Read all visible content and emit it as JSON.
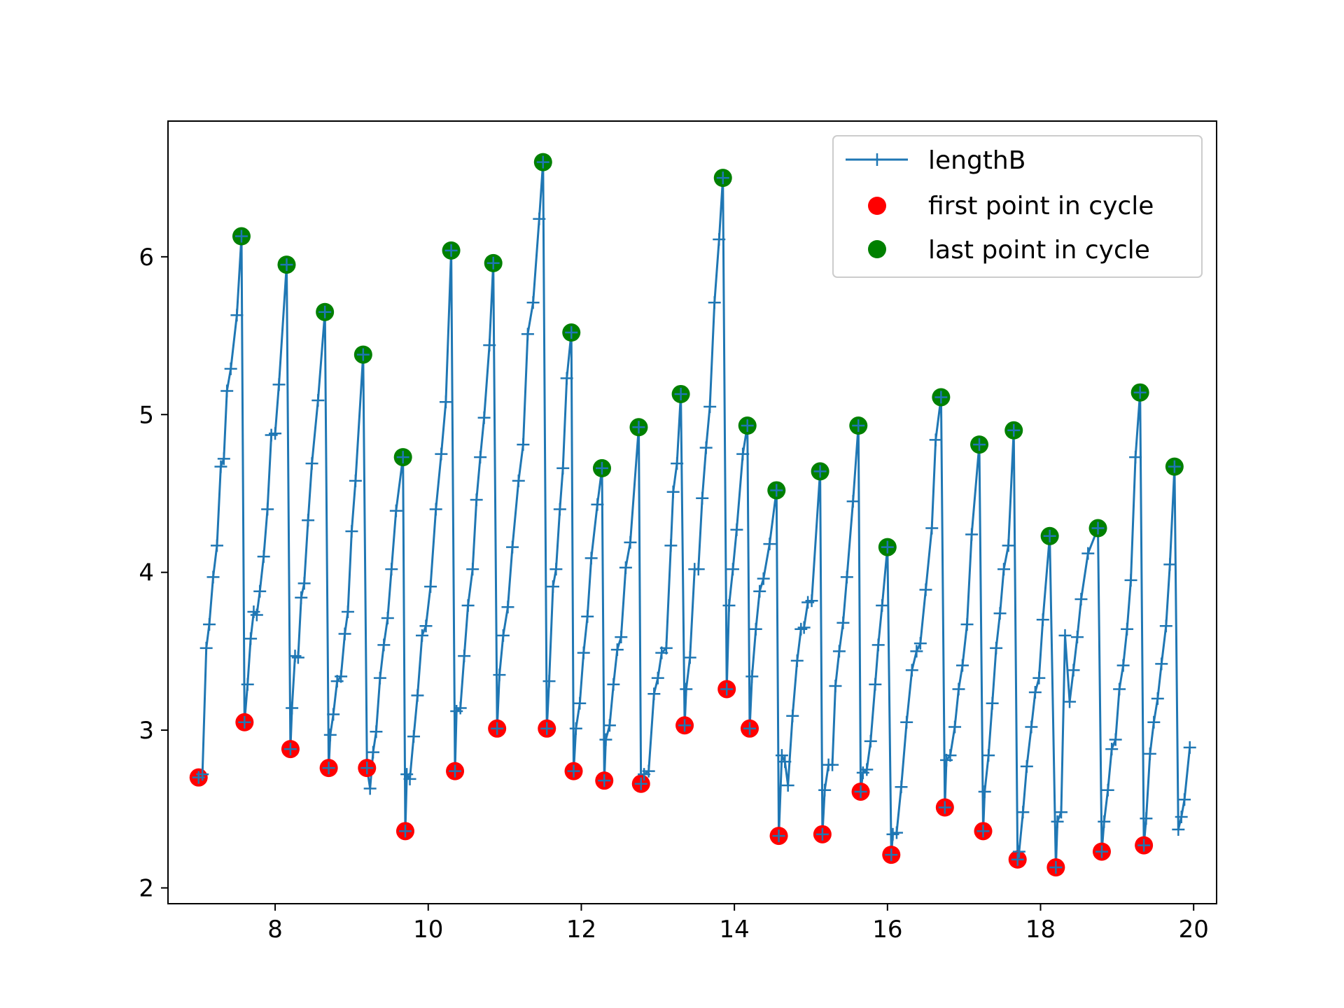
{
  "chart_data": {
    "type": "line",
    "title": "",
    "xlabel": "",
    "ylabel": "",
    "xlim": [
      6.6,
      20.3
    ],
    "ylim": [
      1.9,
      6.86
    ],
    "xticks": [
      8,
      10,
      12,
      14,
      16,
      18,
      20
    ],
    "yticks": [
      2,
      3,
      4,
      5,
      6
    ],
    "grid": false,
    "legend": {
      "position": "top-right",
      "entries": [
        "lengthB",
        "first point in cycle",
        "last point in cycle"
      ]
    },
    "colors": {
      "line": "#1f77b4",
      "first": "#ff0000",
      "last": "#008000"
    },
    "cycles": [
      {
        "first": [
          7.0,
          2.7
        ],
        "last": [
          7.56,
          6.13
        ],
        "rise": [
          [
            7.05,
            2.72
          ],
          [
            7.1,
            3.52
          ],
          [
            7.14,
            3.67
          ],
          [
            7.19,
            3.97
          ],
          [
            7.24,
            4.17
          ],
          [
            7.29,
            4.67
          ],
          [
            7.33,
            4.72
          ],
          [
            7.37,
            5.15
          ],
          [
            7.42,
            5.29
          ],
          [
            7.5,
            5.63
          ]
        ]
      },
      {
        "first": [
          7.6,
          3.05
        ],
        "last": [
          8.15,
          5.95
        ],
        "rise": [
          [
            7.64,
            3.29
          ],
          [
            7.68,
            3.58
          ],
          [
            7.72,
            3.75
          ],
          [
            7.76,
            3.73
          ],
          [
            7.8,
            3.88
          ],
          [
            7.85,
            4.1
          ],
          [
            7.9,
            4.4
          ],
          [
            7.95,
            4.87
          ],
          [
            8.0,
            4.88
          ],
          [
            8.05,
            5.19
          ]
        ]
      },
      {
        "first": [
          8.2,
          2.88
        ],
        "last": [
          8.65,
          5.65
        ],
        "rise": [
          [
            8.22,
            3.14
          ],
          [
            8.26,
            3.47
          ],
          [
            8.3,
            3.46
          ],
          [
            8.34,
            3.84
          ],
          [
            8.38,
            3.93
          ],
          [
            8.43,
            4.33
          ],
          [
            8.48,
            4.69
          ],
          [
            8.56,
            5.09
          ]
        ]
      },
      {
        "first": [
          8.7,
          2.76
        ],
        "last": [
          9.15,
          5.38
        ],
        "rise": [
          [
            8.72,
            2.97
          ],
          [
            8.76,
            3.1
          ],
          [
            8.81,
            3.31
          ],
          [
            8.86,
            3.34
          ],
          [
            8.91,
            3.61
          ],
          [
            8.95,
            3.75
          ],
          [
            9.0,
            4.26
          ],
          [
            9.05,
            4.58
          ]
        ]
      },
      {
        "first": [
          9.2,
          2.76
        ],
        "last": [
          9.67,
          4.73
        ],
        "rise": [
          [
            9.24,
            2.63
          ],
          [
            9.28,
            2.86
          ],
          [
            9.32,
            2.99
          ],
          [
            9.37,
            3.33
          ],
          [
            9.42,
            3.54
          ],
          [
            9.47,
            3.71
          ],
          [
            9.52,
            4.02
          ],
          [
            9.58,
            4.39
          ]
        ]
      },
      {
        "first": [
          9.7,
          2.36
        ],
        "last": [
          10.3,
          6.04
        ],
        "rise": [
          [
            9.72,
            2.72
          ],
          [
            9.76,
            2.69
          ],
          [
            9.81,
            2.96
          ],
          [
            9.86,
            3.22
          ],
          [
            9.92,
            3.6
          ],
          [
            9.97,
            3.66
          ],
          [
            10.03,
            3.91
          ],
          [
            10.1,
            4.4
          ],
          [
            10.17,
            4.75
          ],
          [
            10.23,
            5.08
          ]
        ]
      },
      {
        "first": [
          10.35,
          2.74
        ],
        "last": [
          10.85,
          5.96
        ],
        "rise": [
          [
            10.37,
            3.12
          ],
          [
            10.42,
            3.14
          ],
          [
            10.47,
            3.47
          ],
          [
            10.52,
            3.79
          ],
          [
            10.58,
            4.02
          ],
          [
            10.63,
            4.46
          ],
          [
            10.68,
            4.73
          ],
          [
            10.73,
            4.98
          ],
          [
            10.8,
            5.44
          ]
        ]
      },
      {
        "first": [
          10.9,
          3.01
        ],
        "last": [
          11.5,
          6.6
        ],
        "rise": [
          [
            10.93,
            3.35
          ],
          [
            10.98,
            3.6
          ],
          [
            11.04,
            3.78
          ],
          [
            11.1,
            4.16
          ],
          [
            11.18,
            4.58
          ],
          [
            11.24,
            4.81
          ],
          [
            11.3,
            5.51
          ],
          [
            11.37,
            5.71
          ],
          [
            11.45,
            6.24
          ]
        ]
      },
      {
        "first": [
          11.55,
          3.01
        ],
        "last": [
          11.87,
          5.52
        ],
        "rise": [
          [
            11.58,
            3.31
          ],
          [
            11.63,
            3.91
          ],
          [
            11.67,
            4.02
          ],
          [
            11.72,
            4.4
          ],
          [
            11.76,
            4.66
          ],
          [
            11.81,
            5.23
          ]
        ]
      },
      {
        "first": [
          11.9,
          2.74
        ],
        "last": [
          12.27,
          4.66
        ],
        "rise": [
          [
            11.93,
            3.01
          ],
          [
            11.98,
            3.17
          ],
          [
            12.03,
            3.49
          ],
          [
            12.08,
            3.72
          ],
          [
            12.13,
            4.09
          ],
          [
            12.21,
            4.43
          ]
        ]
      },
      {
        "first": [
          12.3,
          2.68
        ],
        "last": [
          12.75,
          4.92
        ],
        "rise": [
          [
            12.32,
            2.94
          ],
          [
            12.37,
            3.03
          ],
          [
            12.42,
            3.29
          ],
          [
            12.47,
            3.51
          ],
          [
            12.52,
            3.59
          ],
          [
            12.58,
            4.03
          ],
          [
            12.64,
            4.19
          ]
        ]
      },
      {
        "first": [
          12.78,
          2.66
        ],
        "last": [
          13.3,
          5.13
        ],
        "rise": [
          [
            12.82,
            2.72
          ],
          [
            12.88,
            2.74
          ],
          [
            12.95,
            3.23
          ],
          [
            13.0,
            3.33
          ],
          [
            13.05,
            3.49
          ],
          [
            13.11,
            3.52
          ],
          [
            13.17,
            4.17
          ],
          [
            13.2,
            4.51
          ],
          [
            13.25,
            4.69
          ]
        ]
      },
      {
        "first": [
          13.35,
          3.03
        ],
        "last": [
          13.85,
          6.5
        ],
        "rise": [
          [
            13.37,
            3.26
          ],
          [
            13.42,
            3.46
          ],
          [
            13.48,
            4.02
          ],
          [
            13.53,
            4.02
          ],
          [
            13.58,
            4.47
          ],
          [
            13.63,
            4.79
          ],
          [
            13.68,
            5.05
          ],
          [
            13.74,
            5.71
          ],
          [
            13.8,
            6.11
          ]
        ]
      },
      {
        "first": [
          13.9,
          3.26
        ],
        "last": [
          14.17,
          4.93
        ],
        "rise": [
          [
            13.93,
            3.79
          ],
          [
            13.98,
            4.02
          ],
          [
            14.03,
            4.27
          ],
          [
            14.11,
            4.75
          ]
        ]
      },
      {
        "first": [
          14.2,
          3.01
        ],
        "last": [
          14.55,
          4.52
        ],
        "rise": [
          [
            14.23,
            3.34
          ],
          [
            14.28,
            3.64
          ],
          [
            14.33,
            3.88
          ],
          [
            14.38,
            3.96
          ],
          [
            14.46,
            4.18
          ]
        ]
      },
      {
        "first": [
          14.58,
          2.33
        ],
        "last": [
          15.12,
          4.64
        ],
        "rise": [
          [
            14.62,
            2.84
          ],
          [
            14.66,
            2.8
          ],
          [
            14.7,
            2.65
          ],
          [
            14.76,
            3.09
          ],
          [
            14.82,
            3.44
          ],
          [
            14.87,
            3.64
          ],
          [
            14.91,
            3.65
          ],
          [
            14.96,
            3.81
          ],
          [
            15.01,
            3.82
          ]
        ]
      },
      {
        "first": [
          15.15,
          2.34
        ],
        "last": [
          15.62,
          4.93
        ],
        "rise": [
          [
            15.18,
            2.62
          ],
          [
            15.23,
            2.78
          ],
          [
            15.28,
            2.78
          ],
          [
            15.32,
            3.28
          ],
          [
            15.37,
            3.5
          ],
          [
            15.42,
            3.68
          ],
          [
            15.47,
            3.97
          ],
          [
            15.55,
            4.45
          ]
        ]
      },
      {
        "first": [
          15.65,
          2.61
        ],
        "last": [
          16.0,
          4.16
        ],
        "rise": [
          [
            15.68,
            2.73
          ],
          [
            15.73,
            2.75
          ],
          [
            15.78,
            2.93
          ],
          [
            15.84,
            3.29
          ],
          [
            15.88,
            3.54
          ],
          [
            15.93,
            3.79
          ]
        ]
      },
      {
        "first": [
          16.05,
          2.21
        ],
        "last": [
          16.7,
          5.11
        ],
        "rise": [
          [
            16.07,
            2.34
          ],
          [
            16.12,
            2.35
          ],
          [
            16.18,
            2.64
          ],
          [
            16.25,
            3.05
          ],
          [
            16.32,
            3.38
          ],
          [
            16.38,
            3.5
          ],
          [
            16.43,
            3.55
          ],
          [
            16.5,
            3.89
          ],
          [
            16.58,
            4.28
          ],
          [
            16.63,
            4.84
          ]
        ]
      },
      {
        "first": [
          16.75,
          2.51
        ],
        "last": [
          17.2,
          4.81
        ],
        "rise": [
          [
            16.77,
            2.81
          ],
          [
            16.82,
            2.84
          ],
          [
            16.88,
            3.02
          ],
          [
            16.93,
            3.26
          ],
          [
            16.98,
            3.41
          ],
          [
            17.04,
            3.67
          ],
          [
            17.1,
            4.24
          ]
        ]
      },
      {
        "first": [
          17.25,
          2.36
        ],
        "last": [
          17.65,
          4.9
        ],
        "rise": [
          [
            17.27,
            2.61
          ],
          [
            17.32,
            2.84
          ],
          [
            17.37,
            3.17
          ],
          [
            17.42,
            3.52
          ],
          [
            17.47,
            3.74
          ],
          [
            17.52,
            4.02
          ],
          [
            17.58,
            4.17
          ]
        ]
      },
      {
        "first": [
          17.7,
          2.18
        ],
        "last": [
          18.12,
          4.23
        ],
        "rise": [
          [
            17.72,
            2.23
          ],
          [
            17.77,
            2.48
          ],
          [
            17.82,
            2.77
          ],
          [
            17.88,
            3.02
          ],
          [
            17.93,
            3.24
          ],
          [
            17.98,
            3.33
          ],
          [
            18.03,
            3.7
          ]
        ]
      },
      {
        "first": [
          18.2,
          2.13
        ],
        "last": [
          18.75,
          4.28
        ],
        "rise": [
          [
            18.22,
            2.42
          ],
          [
            18.27,
            2.48
          ],
          [
            18.32,
            3.6
          ],
          [
            18.38,
            3.18
          ],
          [
            18.43,
            3.38
          ],
          [
            18.48,
            3.59
          ],
          [
            18.53,
            3.83
          ],
          [
            18.62,
            4.12
          ]
        ]
      },
      {
        "first": [
          18.8,
          2.23
        ],
        "last": [
          19.3,
          5.14
        ],
        "rise": [
          [
            18.83,
            2.42
          ],
          [
            18.88,
            2.62
          ],
          [
            18.93,
            2.88
          ],
          [
            18.98,
            2.94
          ],
          [
            19.03,
            3.26
          ],
          [
            19.08,
            3.41
          ],
          [
            19.13,
            3.64
          ],
          [
            19.18,
            3.95
          ],
          [
            19.24,
            4.73
          ]
        ]
      },
      {
        "first": [
          19.35,
          2.27
        ],
        "last": [
          19.75,
          4.67
        ],
        "rise": [
          [
            19.38,
            2.44
          ],
          [
            19.43,
            2.85
          ],
          [
            19.48,
            3.05
          ],
          [
            19.53,
            3.2
          ],
          [
            19.58,
            3.42
          ],
          [
            19.64,
            3.66
          ],
          [
            19.69,
            4.05
          ]
        ]
      }
    ],
    "tail": [
      [
        19.8,
        2.37
      ],
      [
        19.84,
        2.45
      ],
      [
        19.88,
        2.56
      ],
      [
        19.95,
        2.89
      ]
    ]
  }
}
